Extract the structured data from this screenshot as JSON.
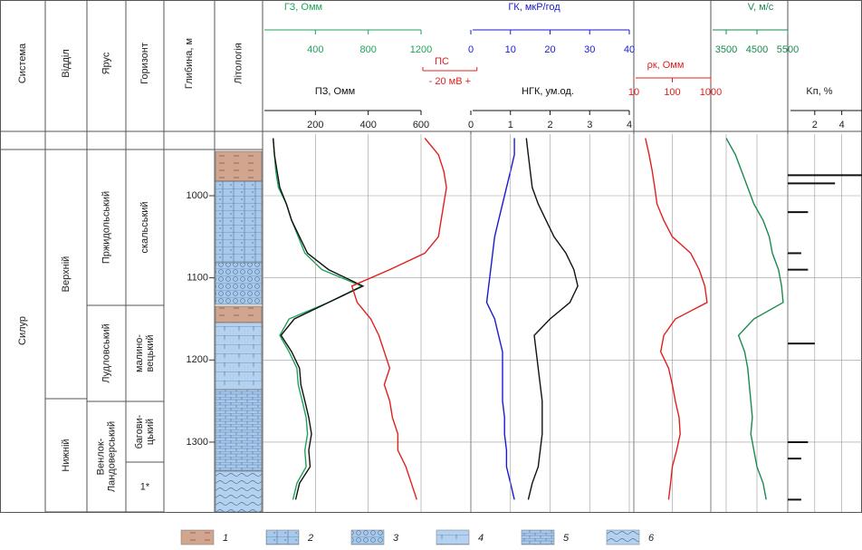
{
  "columns": [
    "Система",
    "Відділ",
    "Ярус",
    "Горизонт",
    "Глибина, м",
    "Літологія"
  ],
  "stratigraphy": {
    "system": [
      "Силур"
    ],
    "division": [
      "Верхній",
      "Нижній"
    ],
    "stage": [
      "Пржидольський",
      "Лудловський",
      "Венлок-Ландоверський"
    ],
    "horizon": [
      "скальський",
      "малино-вецький",
      "багови-цький",
      "1*"
    ]
  },
  "legend": [
    "1",
    "2",
    "3",
    "4",
    "5",
    "6"
  ],
  "chart_data": {
    "type": "well-log",
    "ylim": [
      925,
      1385
    ],
    "yticks": [
      1000,
      1100,
      1200,
      1300
    ],
    "grid": true,
    "depths": [
      930,
      950,
      970,
      990,
      1010,
      1030,
      1050,
      1070,
      1090,
      1110,
      1130,
      1150,
      1170,
      1190,
      1210,
      1230,
      1250,
      1270,
      1290,
      1310,
      1330,
      1350,
      1370
    ],
    "series": [
      {
        "name": "ГЗ, Омм",
        "color": "#1fa35a",
        "xlim": [
          0,
          1200
        ],
        "xticks": [
          400,
          800,
          1200
        ],
        "values": [
          80,
          90,
          100,
          120,
          180,
          220,
          270,
          320,
          450,
          750,
          500,
          200,
          130,
          200,
          260,
          270,
          300,
          330,
          340,
          320,
          330,
          260,
          230
        ]
      },
      {
        "name": "ПЗ, Омм",
        "color": "#111111",
        "xlim": [
          0,
          600
        ],
        "xticks": [
          200,
          400,
          600
        ],
        "values": [
          40,
          45,
          55,
          65,
          90,
          110,
          140,
          170,
          250,
          380,
          250,
          120,
          70,
          110,
          140,
          145,
          160,
          175,
          185,
          175,
          180,
          140,
          125
        ]
      },
      {
        "name": "ПС",
        "color": "#e02020",
        "xlim": [
          -60,
          17
        ],
        "xticks": [
          {
            "value": 20,
            "label": "- 20 мВ +"
          }
        ],
        "values": [
          0,
          5,
          7,
          8,
          7,
          6,
          5,
          0,
          -13,
          -27,
          -25,
          -20,
          -17,
          -15,
          -13,
          -15,
          -13,
          -12,
          -10,
          -10,
          -7,
          -5,
          -3
        ]
      },
      {
        "name": "ГК, мкР/год",
        "color": "#1a1ad0",
        "xlim": [
          0,
          40
        ],
        "xticks": [
          0,
          10,
          20,
          30,
          40
        ],
        "values": [
          11,
          11,
          10,
          9,
          8,
          7,
          6,
          5.5,
          5,
          4.5,
          4,
          6,
          7,
          8,
          8,
          8,
          8,
          8.5,
          8.5,
          9,
          9,
          10,
          11
        ]
      },
      {
        "name": "НГК, ум.од.",
        "color": "#111111",
        "xlim": [
          0,
          4
        ],
        "xticks": [
          0,
          1,
          2,
          3,
          4
        ],
        "values": [
          1.4,
          1.45,
          1.5,
          1.55,
          1.7,
          1.9,
          2.1,
          2.4,
          2.6,
          2.7,
          2.5,
          2.0,
          1.6,
          1.65,
          1.7,
          1.75,
          1.8,
          1.8,
          1.8,
          1.75,
          1.7,
          1.55,
          1.45
        ]
      },
      {
        "name": "ρк, Омм",
        "color": "#e02020",
        "xlim": [
          10,
          1000
        ],
        "log": true,
        "xticks": [
          10,
          100,
          1000
        ],
        "values": [
          20,
          25,
          30,
          35,
          40,
          60,
          100,
          300,
          500,
          700,
          800,
          120,
          60,
          50,
          80,
          100,
          120,
          150,
          160,
          130,
          100,
          90,
          80
        ]
      },
      {
        "name": "V, м/с",
        "color": "#1a8a50",
        "xlim": [
          3000,
          5500
        ],
        "xticks": [
          3500,
          4500,
          5500
        ],
        "values": [
          3500,
          3800,
          4000,
          4200,
          4400,
          4700,
          4900,
          5000,
          5200,
          5300,
          5350,
          4400,
          3900,
          4100,
          4200,
          4250,
          4300,
          4350,
          4300,
          4400,
          4500,
          4700,
          4800
        ]
      }
    ],
    "kp": {
      "name": "Kп, %",
      "color": "#111111",
      "xlim": [
        0,
        5.5
      ],
      "xticks": [
        2,
        4
      ],
      "depths": [
        975,
        985,
        1020,
        1070,
        1090,
        1180,
        1300,
        1320,
        1370
      ],
      "values": [
        5.5,
        3.5,
        1.5,
        1.0,
        1.5,
        2.0,
        1.5,
        1.0,
        1.0
      ]
    }
  }
}
